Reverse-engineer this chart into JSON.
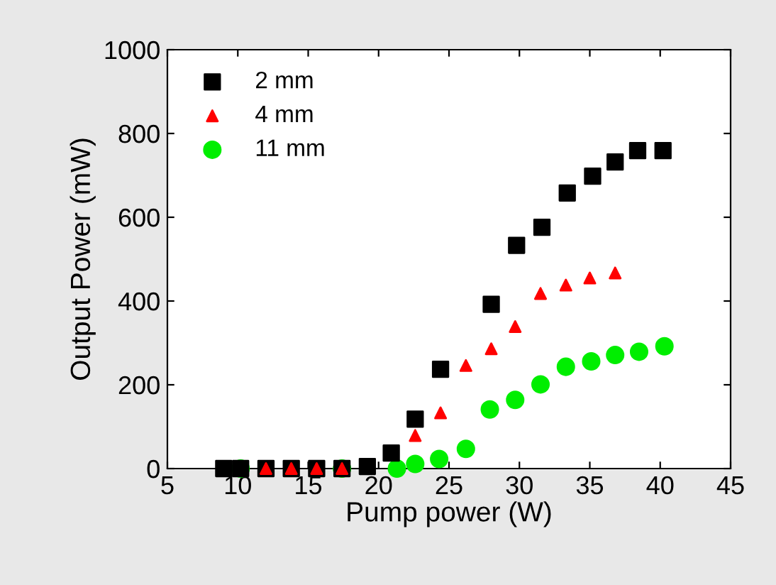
{
  "chart_data": {
    "type": "scatter",
    "xlabel": "Pump power (W)",
    "ylabel": "Output Power (mW)",
    "xlim": [
      5,
      45
    ],
    "xticks": [
      5,
      10,
      15,
      20,
      25,
      30,
      35,
      40,
      45
    ],
    "ylim": [
      0,
      1000
    ],
    "yticks": [
      0,
      200,
      400,
      600,
      800,
      1000
    ],
    "grid": false,
    "legend": "top left",
    "series": [
      {
        "name": "2 mm",
        "color": "#000000",
        "marker": "square",
        "x": [
          9.0,
          10.2,
          12.0,
          13.8,
          15.6,
          17.4,
          19.2,
          20.9,
          22.6,
          24.4,
          28.0,
          29.8,
          31.6,
          33.4,
          35.2,
          36.8,
          38.4,
          40.2
        ],
        "values": [
          0,
          0,
          0,
          0,
          0,
          0,
          5,
          37,
          118,
          237,
          392,
          533,
          576,
          658,
          698,
          732,
          759,
          759
        ]
      },
      {
        "name": "4 mm",
        "color": "#ff0000",
        "marker": "triangle",
        "x": [
          12.0,
          13.8,
          15.6,
          17.4,
          22.6,
          24.4,
          26.2,
          28.0,
          29.7,
          31.5,
          33.3,
          35.0,
          36.8
        ],
        "values": [
          0,
          0,
          0,
          0,
          79,
          133,
          246,
          286,
          339,
          418,
          438,
          455,
          467
        ]
      },
      {
        "name": "11 mm",
        "color": "#00ee00",
        "marker": "circle",
        "x": [
          10.2,
          17.4,
          21.3,
          22.6,
          24.3,
          26.2,
          27.9,
          29.7,
          31.5,
          33.3,
          35.1,
          36.8,
          38.5,
          40.3
        ],
        "values": [
          0,
          0,
          0,
          11,
          23,
          47,
          141,
          164,
          201,
          243,
          256,
          271,
          279,
          292
        ]
      }
    ]
  }
}
